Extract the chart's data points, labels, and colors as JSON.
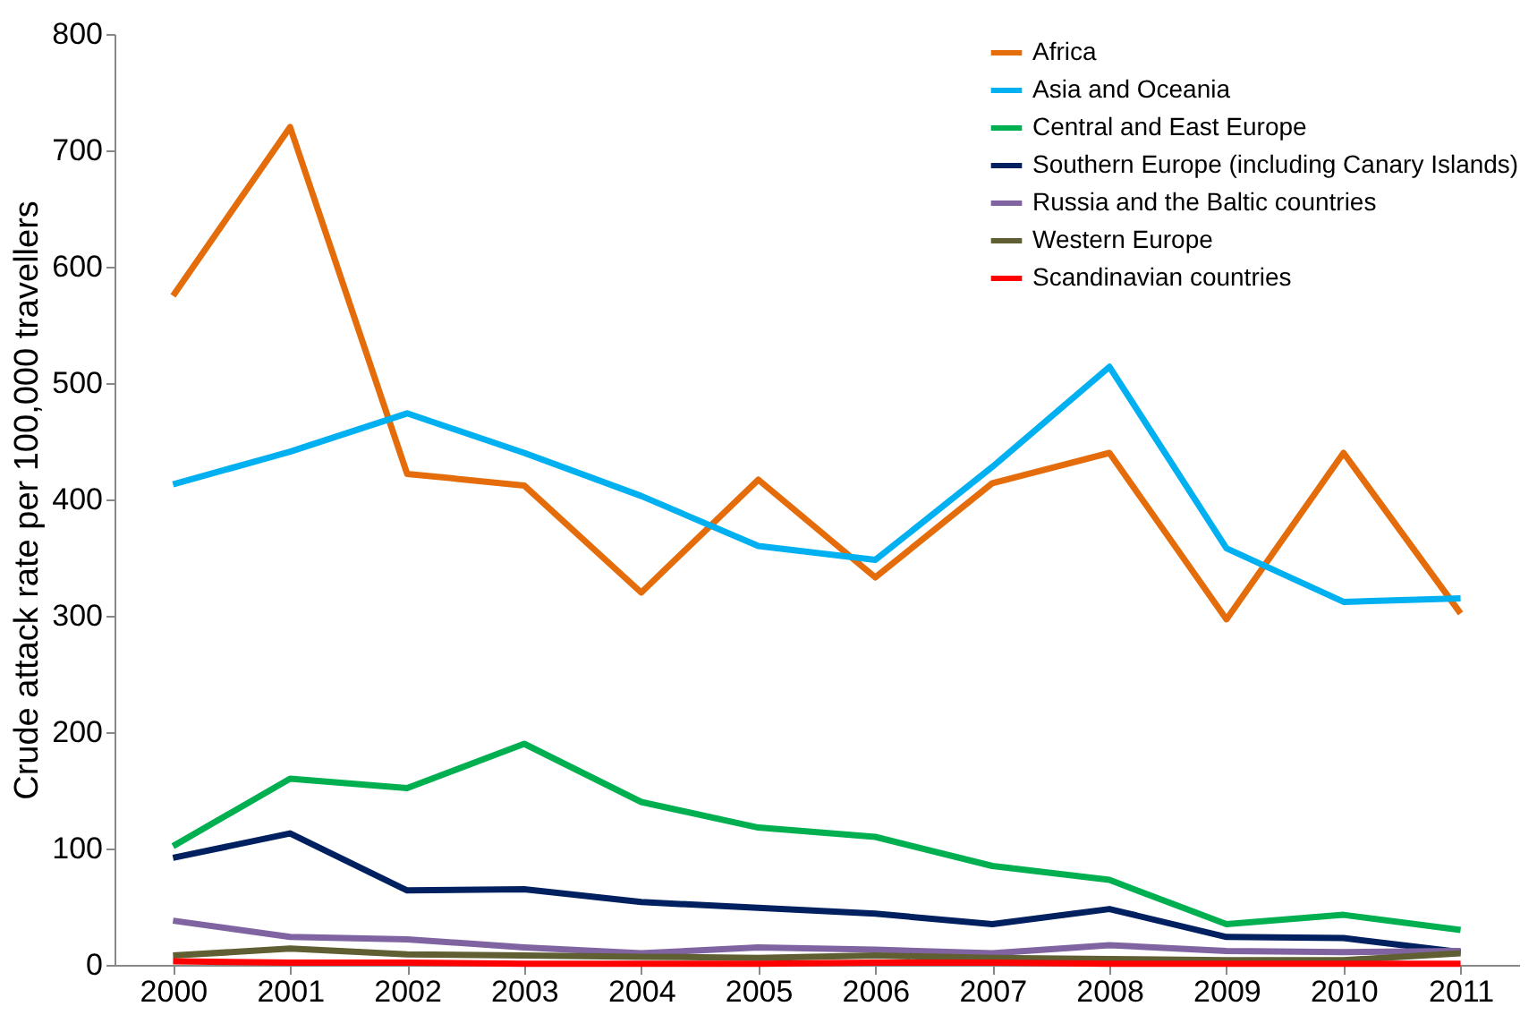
{
  "chart_data": {
    "type": "line",
    "ylabel": "Crude attack rate per 100,000 travellers",
    "categories": [
      "2000",
      "2001",
      "2002",
      "2003",
      "2004",
      "2005",
      "2006",
      "2007",
      "2008",
      "2009",
      "2010",
      "2011"
    ],
    "ylim": [
      0,
      800
    ],
    "yticks": [
      0,
      100,
      200,
      300,
      400,
      500,
      600,
      700,
      800
    ],
    "grid": false,
    "legend": "top right",
    "marker": "none",
    "line_style": "solid",
    "series": [
      {
        "name": "Africa",
        "color": "#e46c0a",
        "values": [
          575,
          720,
          422,
          412,
          320,
          417,
          333,
          414,
          440,
          297,
          440,
          302
        ]
      },
      {
        "name": "Asia and Oceania",
        "color": "#00b0f0",
        "values": [
          413,
          441,
          474,
          440,
          403,
          360,
          348,
          428,
          514,
          358,
          312,
          315
        ]
      },
      {
        "name": "Central and East Europe",
        "color": "#00b050",
        "values": [
          102,
          160,
          152,
          190,
          140,
          118,
          110,
          85,
          73,
          35,
          43,
          30
        ]
      },
      {
        "name": "Southern Europe (including Canary Islands)",
        "color": "#002060",
        "values": [
          92,
          113,
          64,
          65,
          54,
          49,
          44,
          35,
          48,
          24,
          23,
          11
        ]
      },
      {
        "name": "Russia and the Baltic countries",
        "color": "#8064a2",
        "values": [
          38,
          24,
          22,
          15,
          10,
          15,
          13,
          10,
          17,
          12,
          11,
          12
        ]
      },
      {
        "name": "Western Europe",
        "color": "#5f5f33",
        "values": [
          8,
          14,
          9,
          8,
          7,
          6,
          8,
          6,
          5,
          4,
          4,
          10
        ]
      },
      {
        "name": "Scandinavian countries",
        "color": "#ff0000",
        "values": [
          3,
          2,
          2,
          1,
          1,
          1,
          2,
          2,
          1,
          1,
          1,
          1
        ]
      }
    ]
  }
}
